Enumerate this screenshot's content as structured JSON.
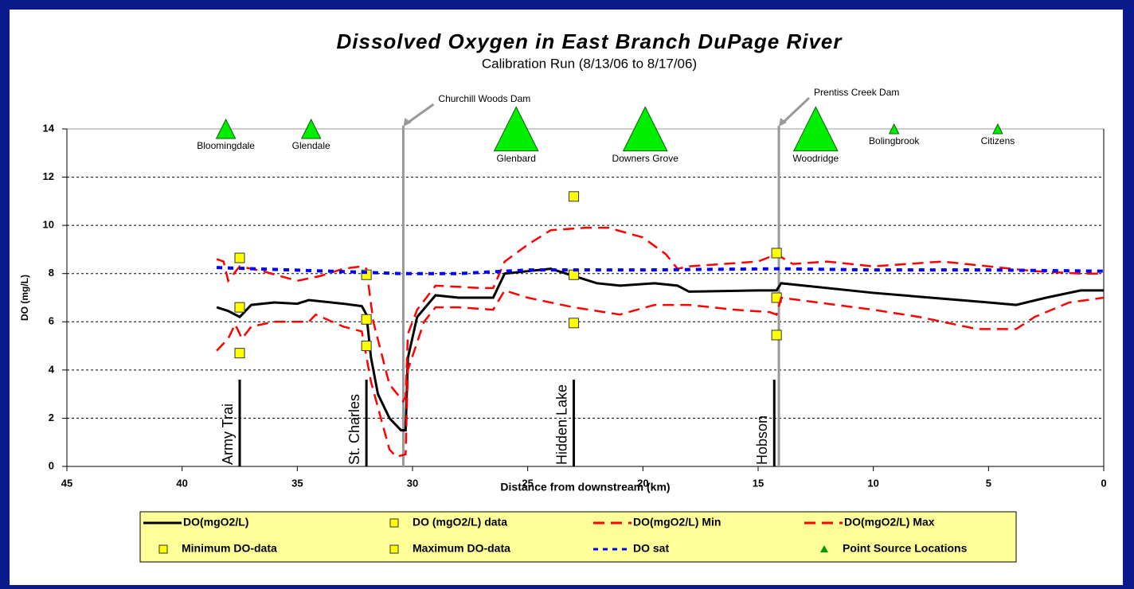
{
  "chart_data": {
    "type": "line",
    "title": "Dissolved Oxygen in East Branch DuPage River",
    "subtitle": "Calibration Run (8/13/06 to 8/17/06)",
    "x_label": "Distance from downstream (km)",
    "y_label": "DO (mg/L)",
    "xlim": [
      45,
      0
    ],
    "ylim": [
      0,
      14
    ],
    "xticks": [
      45,
      40,
      35,
      30,
      25,
      20,
      15,
      10,
      5,
      0
    ],
    "yticks": [
      0,
      2,
      4,
      6,
      8,
      10,
      12,
      14
    ],
    "grid": true,
    "series": [
      {
        "name": "DO(mgO2/L)",
        "style": "solid",
        "color": "#000000",
        "x": [
          38.5,
          38,
          37.5,
          37,
          36,
          35,
          34.5,
          33,
          32.2,
          32,
          31.8,
          31.5,
          31,
          30.5,
          30.3,
          30.2,
          29.8,
          29,
          28,
          26.5,
          26,
          25,
          24,
          22,
          21,
          19.5,
          18.5,
          18,
          15,
          14.2,
          14,
          10,
          5,
          3.8,
          2.5,
          1,
          0
        ],
        "values": [
          6.6,
          6.45,
          6.2,
          6.7,
          6.8,
          6.75,
          6.9,
          6.75,
          6.65,
          6.3,
          4.5,
          3,
          2,
          1.5,
          1.5,
          4.5,
          6.2,
          7.1,
          7.0,
          7.0,
          8.0,
          8.1,
          8.2,
          7.6,
          7.5,
          7.6,
          7.5,
          7.25,
          7.3,
          7.3,
          7.6,
          7.2,
          6.8,
          6.7,
          7.0,
          7.3,
          7.3
        ]
      },
      {
        "name": "DO (mgO2/L) data",
        "style": "square",
        "color": "#ffff00",
        "x": [
          37.5,
          32,
          23,
          14.2
        ],
        "values": [
          6.6,
          6.1,
          7.95,
          7.0
        ]
      },
      {
        "name": "DO(mgO2/L) Min",
        "style": "dashed",
        "color": "#ff0000",
        "x": [
          38.5,
          38,
          37.7,
          37.4,
          37,
          36,
          34.5,
          34.2,
          33,
          32.2,
          31.8,
          31,
          30.7,
          30.3,
          30.2,
          29.5,
          29,
          28,
          26.5,
          26,
          25,
          23,
          21,
          19.5,
          18,
          16,
          14.5,
          14.2,
          14,
          10,
          8,
          5.5,
          3.8,
          3,
          1.5,
          0
        ],
        "values": [
          4.8,
          5.3,
          5.9,
          5.3,
          5.8,
          6.0,
          6.0,
          6.3,
          5.8,
          5.6,
          3.5,
          0.7,
          0.4,
          0.5,
          4,
          6.0,
          6.6,
          6.6,
          6.5,
          7.3,
          7.0,
          6.6,
          6.3,
          6.7,
          6.7,
          6.5,
          6.4,
          6.3,
          7.0,
          6.5,
          6.2,
          5.7,
          5.7,
          6.2,
          6.8,
          7.0
        ]
      },
      {
        "name": "DO(mgO2/L) Max",
        "style": "dashed",
        "color": "#ff0000",
        "x": [
          38.5,
          38.2,
          38,
          37.5,
          36.5,
          35,
          34,
          33,
          32.2,
          32,
          31.7,
          31,
          30.4,
          30.3,
          30.2,
          29.8,
          29,
          27,
          26.5,
          26,
          25,
          24,
          22.5,
          21.5,
          20,
          19,
          18.5,
          18,
          15,
          14.2,
          13.5,
          12,
          10,
          7,
          5,
          3,
          1,
          0
        ],
        "values": [
          8.6,
          8.5,
          7.7,
          8.3,
          8.1,
          7.7,
          7.9,
          8.2,
          8.3,
          8.2,
          6,
          3.4,
          2.7,
          2.9,
          5.5,
          6.5,
          7.5,
          7.4,
          7.4,
          8.5,
          9.2,
          9.8,
          9.9,
          9.9,
          9.5,
          8.8,
          8.2,
          8.3,
          8.5,
          8.8,
          8.4,
          8.5,
          8.3,
          8.5,
          8.3,
          8.1,
          8.0,
          8.0
        ]
      },
      {
        "name": "Minimum DO-data",
        "style": "square",
        "color": "#ffff00",
        "x": [
          37.5,
          32,
          23,
          14.2
        ],
        "values": [
          4.7,
          5.0,
          5.95,
          5.45
        ]
      },
      {
        "name": "Maximum DO-data",
        "style": "square",
        "color": "#ffff00",
        "x": [
          37.5,
          32,
          23,
          14.2
        ],
        "values": [
          8.65,
          7.95,
          11.2,
          8.85
        ]
      },
      {
        "name": "DO sat",
        "style": "dotted",
        "color": "#0000ff",
        "x": [
          38.5,
          32,
          30.5,
          28,
          25,
          20,
          14,
          10,
          5,
          0
        ],
        "values": [
          8.25,
          8.05,
          8.0,
          8.0,
          8.15,
          8.15,
          8.2,
          8.15,
          8.15,
          8.1
        ]
      },
      {
        "name": "Point Source Locations",
        "style": "triangle",
        "color": "#00ee00",
        "labels": [
          "Bloomingdale",
          "Glendale",
          "Glenbard",
          "Downers Grove",
          "Woodridge",
          "Bolingbrook",
          "Citizens"
        ],
        "x": [
          38.1,
          34.4,
          25.5,
          19.9,
          12.5,
          9.1,
          4.6
        ],
        "values": [
          14,
          14,
          14,
          14,
          14,
          14,
          14
        ],
        "sizes": [
          2,
          2,
          4.6,
          4.6,
          4.6,
          1,
          1
        ]
      }
    ],
    "dams": [
      {
        "label": "Churchill Woods Dam",
        "x": 30.4
      },
      {
        "label": "Prentiss Creek Dam",
        "x": 14.1
      }
    ],
    "stations": [
      {
        "label": "Army Trai",
        "x": 37.5,
        "top": 3.6
      },
      {
        "label": "St. Charles",
        "x": 32,
        "top": 3.6
      },
      {
        "label": "Hidden Lake",
        "x": 23,
        "top": 3.6
      },
      {
        "label": "Hobson",
        "x": 14.3,
        "top": 3.6
      }
    ]
  }
}
